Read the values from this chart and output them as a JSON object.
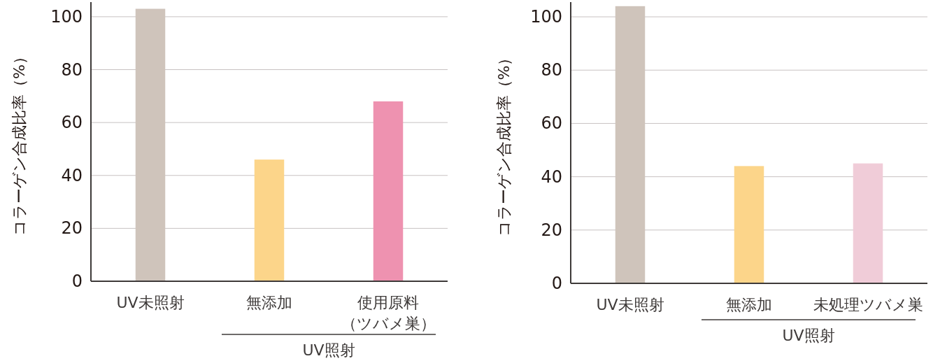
{
  "chart_data": [
    {
      "type": "bar",
      "ylabel": "コラーゲン合成比率（%）",
      "categories": [
        "UV未照射",
        "無添加",
        "使用原料（ツバメ巣）"
      ],
      "values": [
        103,
        46,
        68
      ],
      "colors": [
        "#cfc4bb",
        "#fcd58a",
        "#ee92b0"
      ],
      "ylim": [
        0,
        105
      ],
      "yticks": [
        0,
        20,
        40,
        60,
        80,
        100
      ],
      "grid": "y",
      "annotations": [
        "UV照射"
      ]
    },
    {
      "type": "bar",
      "ylabel": "コラーゲン合成比率（%）",
      "categories": [
        "UV未照射",
        "無添加",
        "未処理ツバメ巣"
      ],
      "values": [
        104,
        44,
        45
      ],
      "colors": [
        "#cfc4bb",
        "#fcd58a",
        "#f0ccd8"
      ],
      "ylim": [
        0,
        105
      ],
      "yticks": [
        0,
        20,
        40,
        60,
        80,
        100
      ],
      "grid": "y",
      "annotations": [
        "UV照射"
      ]
    }
  ]
}
